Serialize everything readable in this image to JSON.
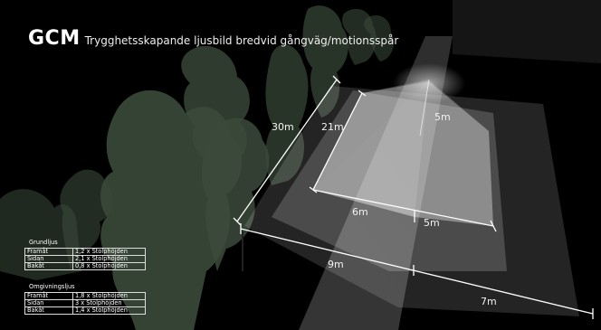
{
  "title": {
    "brand": "GCM",
    "subtitle": "Trygghetsskapande ljusbild bredvid gångväg/motionsspår"
  },
  "dimensions": {
    "d30": "30m",
    "d21": "21m",
    "d5_height": "5m",
    "d6": "6m",
    "d5_side": "5m",
    "d9": "9m",
    "d7": "7m"
  },
  "legend": {
    "grundljus": {
      "heading": "Grundljus",
      "rows": [
        {
          "label": "Framåt",
          "value": "1,2 x Stolphöjden"
        },
        {
          "label": "Sidan",
          "value": "2,1 x Stolphöjden"
        },
        {
          "label": "Bakåt",
          "value": "0,8 x Stolphöjden"
        }
      ]
    },
    "omgivningsljus": {
      "heading": "Omgivningsljus",
      "rows": [
        {
          "label": "Framåt",
          "value": "1,8 x Stolphöjden"
        },
        {
          "label": "Sidan",
          "value": "3 x Stolphöjden"
        },
        {
          "label": "Bakåt",
          "value": "1,4 x Stolphöjden"
        }
      ]
    }
  },
  "colors": {
    "background": "#000000",
    "foliage": "#3a4a3a",
    "light": "#ffffff"
  }
}
